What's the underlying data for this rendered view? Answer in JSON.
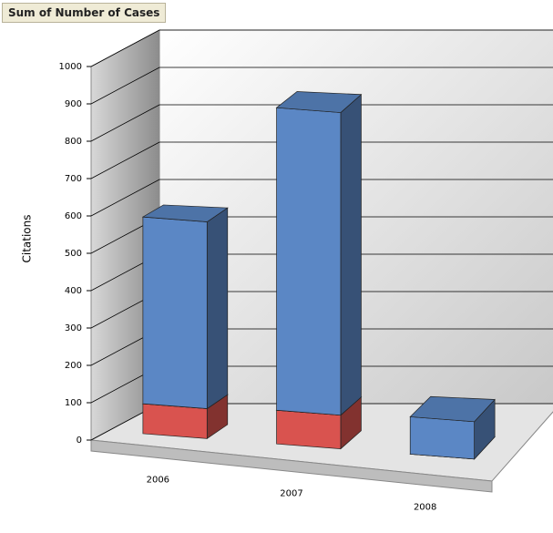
{
  "field_button": "Sum of Number of Cases",
  "chart_data": {
    "type": "bar3d_stacked",
    "y_label": "Citations",
    "categories": [
      "2006",
      "2007",
      "2008"
    ],
    "series": [
      {
        "color": "#d9534f",
        "values": [
          80,
          90,
          0
        ]
      },
      {
        "color": "#5b87c5",
        "values": [
          500,
          810,
          100
        ]
      }
    ],
    "ylim": [
      0,
      1000
    ],
    "yticks": [
      0,
      100,
      200,
      300,
      400,
      500,
      600,
      700,
      800,
      900,
      1000
    ],
    "grid": true
  }
}
